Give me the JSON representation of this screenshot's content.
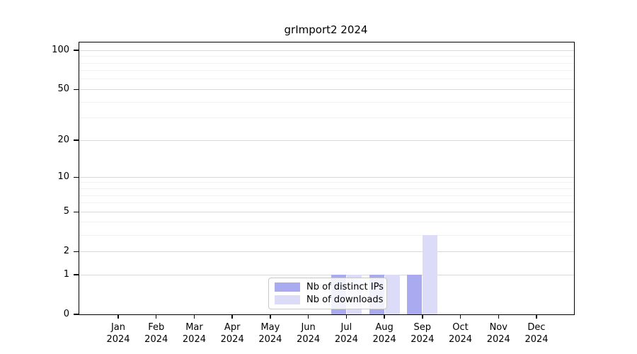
{
  "chart_data": {
    "type": "bar",
    "title": "grImport2 2024",
    "categories": [
      "Jan 2024",
      "Feb 2024",
      "Mar 2024",
      "Apr 2024",
      "May 2024",
      "Jun 2024",
      "Jul 2024",
      "Aug 2024",
      "Sep 2024",
      "Oct 2024",
      "Nov 2024",
      "Dec 2024"
    ],
    "x_tick_month_labels": [
      "Jan",
      "Feb",
      "Mar",
      "Apr",
      "May",
      "Jun",
      "Jul",
      "Aug",
      "Sep",
      "Oct",
      "Nov",
      "Dec"
    ],
    "x_tick_year_label": "2024",
    "series": [
      {
        "name": "Nb of distinct IPs",
        "color": "#aaaaf0",
        "values": [
          0,
          0,
          0,
          0,
          0,
          0,
          1,
          1,
          1,
          0,
          0,
          0
        ]
      },
      {
        "name": "Nb of downloads",
        "color": "#dcdcf8",
        "values": [
          0,
          0,
          0,
          0,
          0,
          0,
          1,
          1,
          3,
          0,
          0,
          0
        ]
      }
    ],
    "y_axis": {
      "scale": "log1p",
      "major_ticks": [
        0,
        1,
        2,
        5,
        10,
        20,
        50,
        100
      ],
      "minor_ticks": [
        3,
        4,
        6,
        7,
        8,
        9,
        30,
        40,
        60,
        70,
        80,
        90
      ],
      "ymin": 0,
      "ymax": 115
    },
    "grid": "horizontal",
    "legend": {
      "position": "inside-bottom-center",
      "items": [
        "Nb of distinct IPs",
        "Nb of downloads"
      ]
    },
    "colors": {
      "grid_major": "#d9d9d9",
      "grid_minor": "#f2f2f2",
      "axis": "#000000",
      "legend_border": "#c8c8c8",
      "background": "#ffffff"
    }
  }
}
